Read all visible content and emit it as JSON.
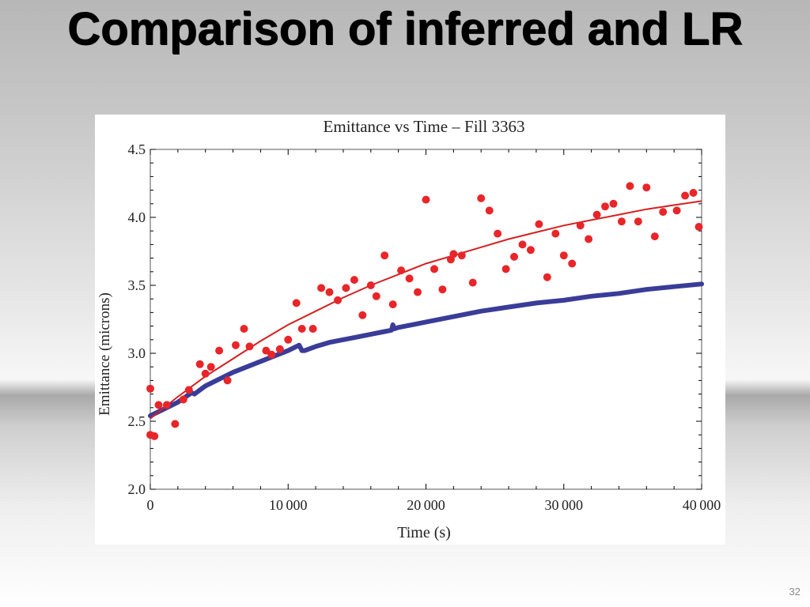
{
  "slide": {
    "title": "Comparison of inferred and LR",
    "page_number": "32"
  },
  "colors": {
    "measured": "#e8262a",
    "fit": "#d42020",
    "inferred": "#3a3c98",
    "axis": "#000000"
  },
  "chart_data": {
    "type": "scatter",
    "title": "Emittance vs Time – Fill 3363",
    "xlabel": "Time (s)",
    "ylabel": "Emittance (microns)",
    "xlim": [
      0,
      40000
    ],
    "ylim": [
      2.0,
      4.5
    ],
    "x_ticks": [
      0,
      10000,
      20000,
      30000,
      40000
    ],
    "x_tick_labels": [
      "0",
      "10 000",
      "20 000",
      "30 000",
      "40 000"
    ],
    "y_ticks": [
      2.0,
      2.5,
      3.0,
      3.5,
      4.0,
      4.5
    ],
    "y_tick_labels": [
      "2.0",
      "2.5",
      "3.0",
      "3.5",
      "4.0",
      "4.5"
    ],
    "grid": false,
    "legend": "none",
    "series": [
      {
        "kind": "points",
        "x": [
          0,
          0,
          300,
          600,
          1200,
          1800,
          2400,
          2800,
          3600,
          4000,
          4400,
          5000,
          5600,
          6200,
          6800,
          7200,
          8400,
          8800,
          9400,
          10000,
          10600,
          11000,
          11800,
          12400,
          13000,
          13600,
          14200,
          14800,
          15400,
          16000,
          16400,
          17000,
          17600,
          18200,
          18800,
          19400,
          20000,
          20600,
          21200,
          21800,
          22000,
          22600,
          23400,
          24000,
          24600,
          25200,
          25800,
          26400,
          27000,
          27600,
          28200,
          28800,
          29400,
          30000,
          30600,
          31200,
          31800,
          32400,
          33000,
          33600,
          34200,
          34800,
          35400,
          36000,
          36600,
          37200,
          38200,
          38800,
          39400,
          39800
        ],
        "y": [
          2.74,
          2.4,
          2.39,
          2.62,
          2.62,
          2.48,
          2.66,
          2.73,
          2.92,
          2.85,
          2.9,
          3.02,
          2.8,
          3.06,
          3.18,
          3.05,
          3.02,
          2.99,
          3.03,
          3.1,
          3.37,
          3.18,
          3.18,
          3.48,
          3.45,
          3.39,
          3.48,
          3.54,
          3.28,
          3.5,
          3.42,
          3.72,
          3.36,
          3.61,
          3.55,
          3.45,
          4.13,
          3.62,
          3.47,
          3.69,
          3.73,
          3.72,
          3.52,
          4.14,
          4.05,
          3.88,
          3.62,
          3.71,
          3.8,
          3.76,
          3.95,
          3.56,
          3.88,
          3.72,
          3.66,
          3.94,
          3.84,
          4.02,
          4.08,
          4.1,
          3.97,
          4.23,
          3.97,
          4.22,
          3.86,
          4.04,
          4.05,
          4.16,
          4.18,
          3.93
        ]
      },
      {
        "kind": "fit-line",
        "x": [
          0,
          2000,
          4000,
          6000,
          8000,
          10000,
          12000,
          14000,
          16000,
          18000,
          20000,
          22000,
          24000,
          26000,
          28000,
          30000,
          32000,
          34000,
          36000,
          38000,
          40000
        ],
        "y": [
          2.52,
          2.68,
          2.83,
          2.96,
          3.09,
          3.21,
          3.31,
          3.41,
          3.5,
          3.58,
          3.66,
          3.72,
          3.78,
          3.84,
          3.89,
          3.94,
          3.98,
          4.02,
          4.06,
          4.09,
          4.12
        ]
      },
      {
        "kind": "inferred-line",
        "x": [
          0,
          1000,
          2000,
          3000,
          3200,
          4000,
          5000,
          6000,
          7000,
          8000,
          9000,
          10000,
          10800,
          11000,
          11200,
          12000,
          13000,
          14000,
          15000,
          16000,
          17000,
          17500,
          17600,
          17700,
          18000,
          19000,
          20000,
          22000,
          24000,
          26000,
          28000,
          30000,
          32000,
          34000,
          36000,
          38000,
          40000
        ],
        "y": [
          2.54,
          2.59,
          2.64,
          2.71,
          2.7,
          2.76,
          2.81,
          2.86,
          2.9,
          2.94,
          2.98,
          3.02,
          3.06,
          3.02,
          3.02,
          3.05,
          3.08,
          3.1,
          3.12,
          3.14,
          3.16,
          3.17,
          3.21,
          3.18,
          3.19,
          3.21,
          3.23,
          3.27,
          3.31,
          3.34,
          3.37,
          3.39,
          3.42,
          3.44,
          3.47,
          3.49,
          3.51
        ]
      }
    ]
  }
}
